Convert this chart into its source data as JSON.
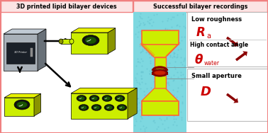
{
  "title_left": "3D printed lipid bilayer devices",
  "title_right": "Successful bilayer recordings",
  "title_bg": "#fce4e4",
  "title_border": "#f08080",
  "bg_color": "#ffffff",
  "cyan_bg": "#7dd8e0",
  "yellow_green": "#ccee00",
  "dark_yellow": "#8a9400",
  "side_yellow": "#909a00",
  "top_yellow": "#e8f200",
  "red_color": "#cc0000",
  "dark_red": "#8b0000",
  "orange_stripe": "#ff6633",
  "label1": "Low roughness",
  "symbol1": "R",
  "sub1": "a",
  "label2": "High contact angle",
  "symbol2": "θ",
  "sub2": "water",
  "label3": "Small aperture",
  "symbol3": "D"
}
